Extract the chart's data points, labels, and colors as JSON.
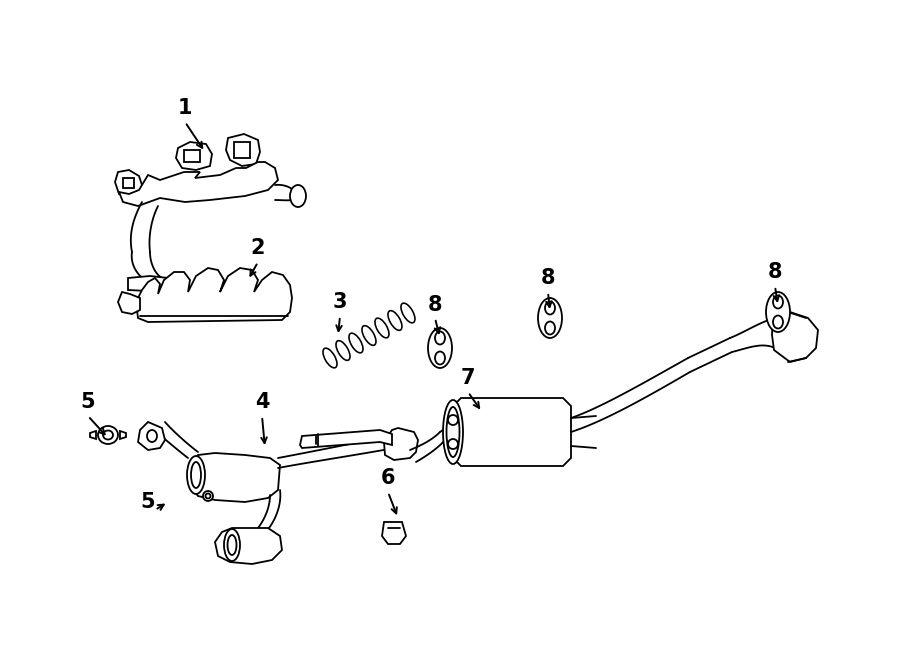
{
  "bg_color": "#ffffff",
  "lc": "#000000",
  "lw": 1.3,
  "figsize": [
    9.0,
    6.61
  ],
  "dpi": 100,
  "labels": [
    [
      "1",
      185,
      108
    ],
    [
      "2",
      258,
      248
    ],
    [
      "3",
      340,
      302
    ],
    [
      "4",
      262,
      402
    ],
    [
      "5",
      88,
      402
    ],
    [
      "5",
      148,
      502
    ],
    [
      "6",
      388,
      478
    ],
    [
      "7",
      468,
      378
    ],
    [
      "8",
      435,
      305
    ],
    [
      "8",
      548,
      278
    ],
    [
      "8",
      775,
      272
    ]
  ],
  "arrows": [
    [
      185,
      122,
      205,
      152
    ],
    [
      258,
      262,
      248,
      280
    ],
    [
      340,
      316,
      338,
      336
    ],
    [
      262,
      416,
      265,
      448
    ],
    [
      88,
      416,
      108,
      438
    ],
    [
      155,
      510,
      168,
      502
    ],
    [
      388,
      492,
      398,
      518
    ],
    [
      468,
      392,
      482,
      412
    ],
    [
      435,
      318,
      440,
      338
    ],
    [
      548,
      292,
      550,
      312
    ],
    [
      775,
      286,
      778,
      306
    ]
  ]
}
